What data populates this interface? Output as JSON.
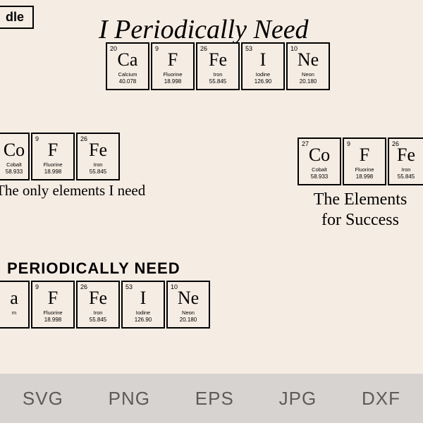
{
  "badge": "dle",
  "designs": {
    "caffeine1": {
      "title": "I Periodically Need",
      "elements": [
        {
          "num": "20",
          "sym": "Ca",
          "name": "Calcium",
          "mass": "40.078"
        },
        {
          "num": "9",
          "sym": "F",
          "name": "Fluorine",
          "mass": "18.998"
        },
        {
          "num": "26",
          "sym": "Fe",
          "name": "Iron",
          "mass": "55.845"
        },
        {
          "num": "53",
          "sym": "I",
          "name": "Iodine",
          "mass": "126.90"
        },
        {
          "num": "10",
          "sym": "Ne",
          "name": "Neon",
          "mass": "20.180"
        }
      ]
    },
    "coffee1": {
      "caption": "The only elements I need",
      "elements": [
        {
          "num": "",
          "sym": "Co",
          "name": "Cobalt",
          "mass": "58.933"
        },
        {
          "num": "9",
          "sym": "F",
          "name": "Fluorine",
          "mass": "18.998"
        },
        {
          "num": "26",
          "sym": "Fe",
          "name": "Iron",
          "mass": "55.845"
        }
      ]
    },
    "coffee2": {
      "caption_line1": "The Elements",
      "caption_line2": "for Success",
      "elements": [
        {
          "num": "27",
          "sym": "Co",
          "name": "Cobalt",
          "mass": "58.933"
        },
        {
          "num": "9",
          "sym": "F",
          "name": "Fluorine",
          "mass": "18.998"
        },
        {
          "num": "26",
          "sym": "Fe",
          "name": "Iron",
          "mass": "55.845"
        }
      ]
    },
    "caffeine2": {
      "title": "PERIODICALLY NEED",
      "elements": [
        {
          "num": "",
          "sym": "a",
          "name": "m",
          "mass": ""
        },
        {
          "num": "9",
          "sym": "F",
          "name": "Fluorine",
          "mass": "18.998"
        },
        {
          "num": "26",
          "sym": "Fe",
          "name": "Iron",
          "mass": "55.845"
        },
        {
          "num": "53",
          "sym": "I",
          "name": "Iodine",
          "mass": "126.90"
        },
        {
          "num": "10",
          "sym": "Ne",
          "name": "Neon",
          "mass": "20.180"
        }
      ]
    }
  },
  "formats": [
    "SVG",
    "PNG",
    "EPS",
    "JPG",
    "DXF"
  ],
  "colors": {
    "background": "#f5ece3",
    "border": "#000000",
    "format_bar_bg": "#d7d3d0",
    "format_text": "#5e5a57"
  }
}
